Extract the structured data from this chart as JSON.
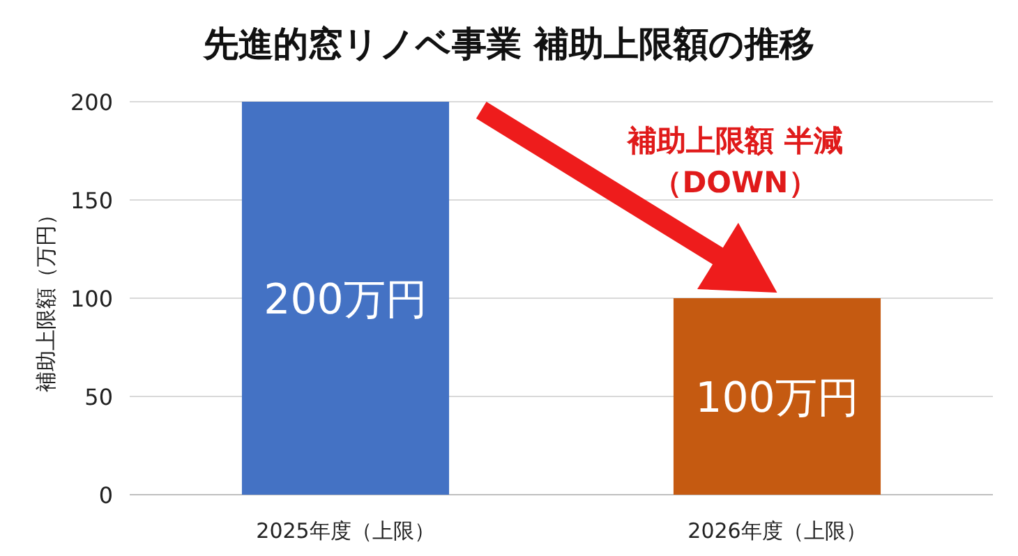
{
  "chart_data": {
    "type": "bar",
    "title": "先進的窓リノベ事業  補助上限額の推移",
    "ylabel": "補助上限額（万円）",
    "categories": [
      "2025年度（上限）",
      "2026年度（上限）"
    ],
    "values": [
      200,
      100
    ],
    "colors": [
      "#4472c4",
      "#c55a11"
    ],
    "value_labels": [
      "200万円",
      "100万円"
    ],
    "ylim": [
      0,
      200
    ],
    "yticks": [
      0,
      50,
      100,
      150,
      200
    ],
    "grid": "y",
    "annotations": [
      "補助上限額 半減",
      "（DOWN）"
    ]
  }
}
